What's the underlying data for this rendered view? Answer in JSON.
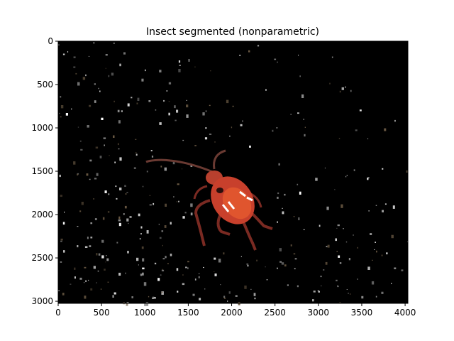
{
  "chart_data": {
    "type": "image",
    "title": "Insect segmented (nonparametric)",
    "xlabel": "",
    "ylabel": "",
    "xlim": [
      0,
      4032
    ],
    "ylim": [
      3024,
      0
    ],
    "x_ticks": [
      0,
      500,
      1000,
      1500,
      2000,
      2500,
      3000,
      3500,
      4000
    ],
    "y_ticks": [
      0,
      500,
      1000,
      1500,
      2000,
      2500,
      3000
    ],
    "grid": false,
    "legend": "none",
    "image_content": {
      "background": "#000000",
      "subject": "red insect (bug) with long legs and antennae",
      "subject_colors": [
        "#c8402c",
        "#e0552e",
        "#a32a22",
        "#ffffff"
      ],
      "speckle_colors": [
        "#ffffff",
        "#cfcfcf",
        "#8f8f8f",
        "#6b5a44"
      ]
    }
  }
}
